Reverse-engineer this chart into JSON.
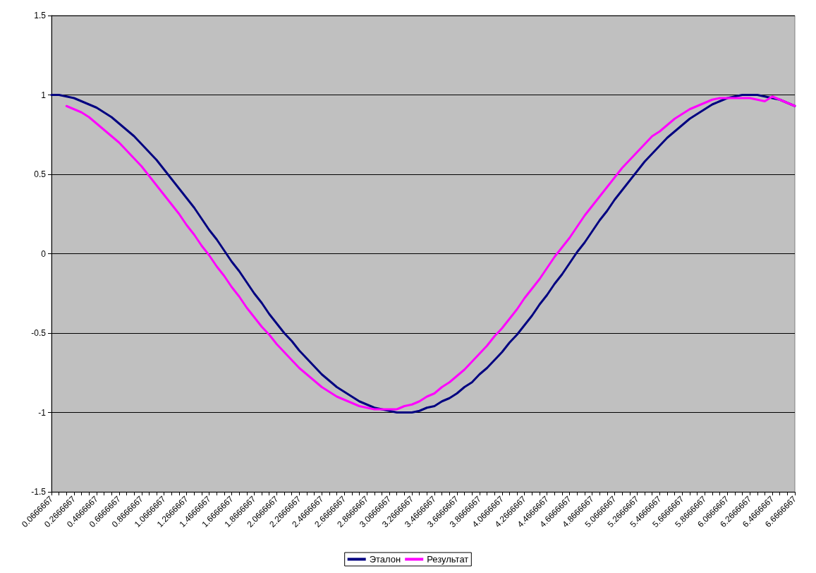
{
  "chart_data": {
    "type": "line",
    "categories": [
      "0.0666667",
      null,
      null,
      "0.2666667",
      null,
      null,
      "0.4666667",
      null,
      null,
      "0.6666667",
      null,
      null,
      "0.8666667",
      null,
      null,
      "1.0666667",
      null,
      null,
      "1.2666667",
      null,
      null,
      "1.4666667",
      null,
      null,
      "1.6666667",
      null,
      null,
      "1.8666667",
      null,
      null,
      "2.0666667",
      null,
      null,
      "2.2666667",
      null,
      null,
      "2.4666667",
      null,
      null,
      "2.6666667",
      null,
      null,
      "2.8666667",
      null,
      null,
      "3.0666667",
      null,
      null,
      "3.2666667",
      null,
      null,
      "3.4666667",
      null,
      null,
      "3.6666667",
      null,
      null,
      "3.8666667",
      null,
      null,
      "4.0666667",
      null,
      null,
      "4.2666667",
      null,
      null,
      "4.4666667",
      null,
      null,
      "4.6666667",
      null,
      null,
      "4.8666667",
      null,
      null,
      "5.0666667",
      null,
      null,
      "5.2666667",
      null,
      null,
      "5.4666667",
      null,
      null,
      "5.6666667",
      null,
      null,
      "5.8666667",
      null,
      null,
      "6.0666667",
      null,
      null,
      "6.2666667",
      null,
      null,
      "6.4666667",
      null,
      null,
      "6.6666667"
    ],
    "series": [
      {
        "name": "Эталон",
        "color": "#000080",
        "values": [
          1.0,
          1.0,
          0.99,
          0.98,
          0.96,
          0.94,
          0.92,
          0.89,
          0.86,
          0.82,
          0.78,
          0.74,
          0.69,
          0.64,
          0.59,
          0.53,
          0.47,
          0.41,
          0.35,
          0.29,
          0.22,
          0.15,
          0.09,
          0.02,
          -0.05,
          -0.11,
          -0.18,
          -0.25,
          -0.31,
          -0.38,
          -0.44,
          -0.5,
          -0.55,
          -0.61,
          -0.66,
          -0.71,
          -0.76,
          -0.8,
          -0.84,
          -0.87,
          -0.9,
          -0.93,
          -0.95,
          -0.97,
          -0.98,
          -0.99,
          -1.0,
          -1.0,
          -1.0,
          -0.99,
          -0.97,
          -0.96,
          -0.93,
          -0.91,
          -0.88,
          -0.84,
          -0.81,
          -0.76,
          -0.72,
          -0.67,
          -0.62,
          -0.56,
          -0.51,
          -0.45,
          -0.39,
          -0.32,
          -0.26,
          -0.19,
          -0.13,
          -0.06,
          0.01,
          0.07,
          0.14,
          0.21,
          0.27,
          0.34,
          0.4,
          0.46,
          0.52,
          0.58,
          0.63,
          0.68,
          0.73,
          0.77,
          0.81,
          0.85,
          0.88,
          0.91,
          0.94,
          0.96,
          0.98,
          0.99,
          1.0,
          1.0,
          1.0,
          0.99,
          0.98,
          0.97,
          0.95,
          0.93
        ]
      },
      {
        "name": "Результат",
        "color": "#ff00ff",
        "values": [
          null,
          null,
          0.93,
          0.91,
          0.89,
          0.86,
          0.82,
          0.78,
          0.74,
          0.7,
          0.65,
          0.6,
          0.55,
          0.49,
          0.43,
          0.37,
          0.31,
          0.25,
          0.18,
          0.12,
          0.05,
          -0.01,
          -0.08,
          -0.14,
          -0.21,
          -0.27,
          -0.34,
          -0.4,
          -0.46,
          -0.51,
          -0.57,
          -0.62,
          -0.67,
          -0.72,
          -0.76,
          -0.8,
          -0.84,
          -0.87,
          -0.9,
          -0.92,
          -0.94,
          -0.96,
          -0.97,
          -0.98,
          -0.98,
          -0.98,
          -0.98,
          -0.96,
          -0.95,
          -0.93,
          -0.9,
          -0.88,
          -0.84,
          -0.81,
          -0.77,
          -0.73,
          -0.68,
          -0.63,
          -0.58,
          -0.52,
          -0.47,
          -0.41,
          -0.35,
          -0.28,
          -0.22,
          -0.16,
          -0.09,
          -0.02,
          0.04,
          0.1,
          0.17,
          0.24,
          0.3,
          0.36,
          0.42,
          0.48,
          0.54,
          0.59,
          0.64,
          0.69,
          0.74,
          0.77,
          0.81,
          0.85,
          0.88,
          0.91,
          0.93,
          0.95,
          0.97,
          0.98,
          0.98,
          0.98,
          0.98,
          0.98,
          0.97,
          0.96,
          0.99,
          0.97,
          0.95,
          0.93
        ]
      }
    ],
    "ylim": [
      -1.5,
      1.5
    ],
    "yticks": [
      -1.5,
      -1,
      -0.5,
      0,
      0.5,
      1,
      1.5
    ],
    "grid": "y",
    "legend": "bottom",
    "marker": "none",
    "line_style": "solid"
  }
}
